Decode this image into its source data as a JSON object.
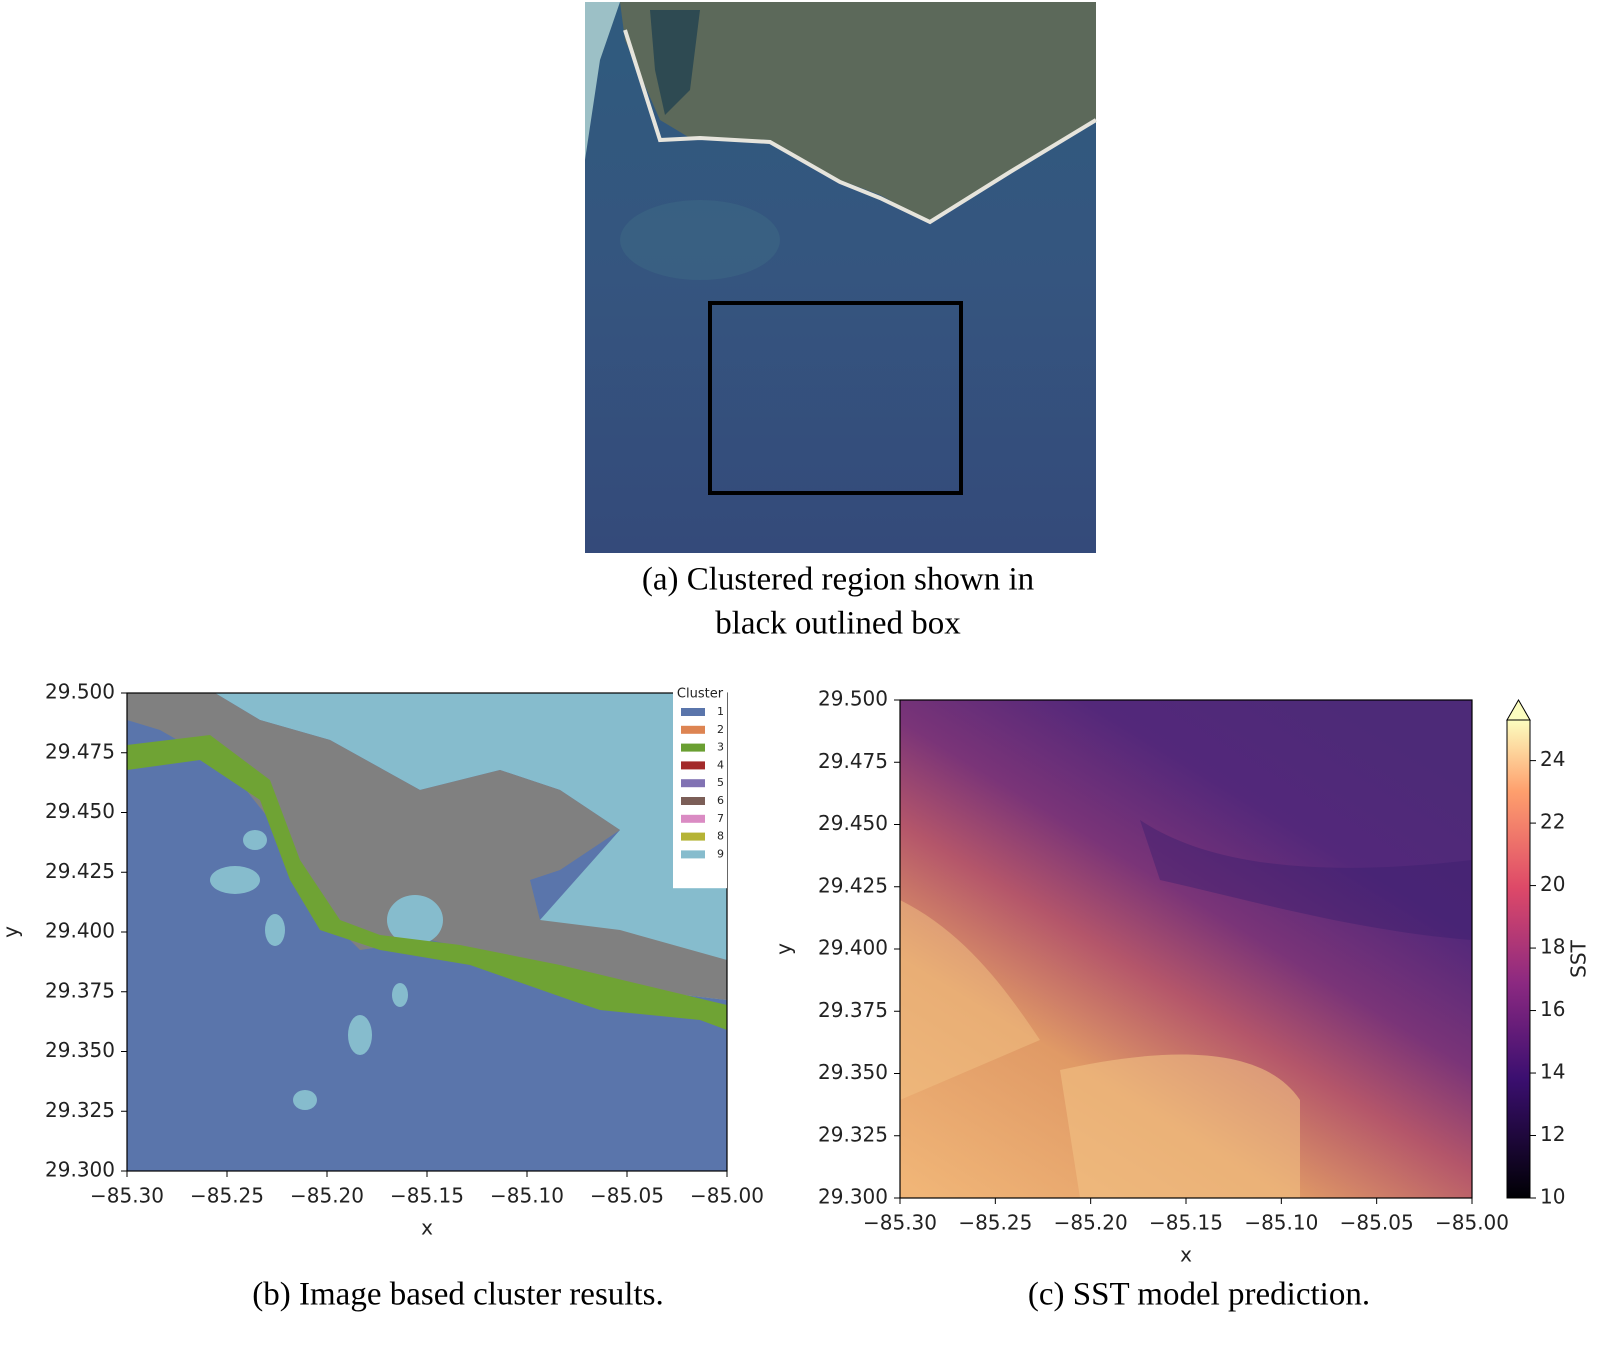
{
  "figure": {
    "panel_a": {
      "caption": [
        "(a) Clustered region shown in",
        "black outlined box"
      ]
    }
  },
  "chart_data": [
    {
      "type": "map",
      "caption": "(b) Image based cluster results.",
      "xlabel": "x",
      "ylabel": "y",
      "xlim": [
        -85.3,
        -85.0
      ],
      "ylim": [
        29.3,
        29.5
      ],
      "xticks": [
        {
          "value": -85.3,
          "label": "−85.30"
        },
        {
          "value": -85.25,
          "label": "−85.25"
        },
        {
          "value": -85.2,
          "label": "−85.20"
        },
        {
          "value": -85.15,
          "label": "−85.15"
        },
        {
          "value": -85.1,
          "label": "−85.10"
        },
        {
          "value": -85.05,
          "label": "−85.05"
        },
        {
          "value": -85.0,
          "label": "−85.00"
        }
      ],
      "yticks": [
        {
          "value": 29.3,
          "label": "29.300"
        },
        {
          "value": 29.325,
          "label": "29.325"
        },
        {
          "value": 29.35,
          "label": "29.350"
        },
        {
          "value": 29.375,
          "label": "29.375"
        },
        {
          "value": 29.4,
          "label": "29.400"
        },
        {
          "value": 29.425,
          "label": "29.425"
        },
        {
          "value": 29.45,
          "label": "29.450"
        },
        {
          "value": 29.475,
          "label": "29.475"
        },
        {
          "value": 29.5,
          "label": "29.500"
        }
      ],
      "legend": {
        "title": "Cluster",
        "position": "upper right",
        "entries": [
          {
            "name": "1",
            "color": "#5a75ab"
          },
          {
            "name": "2",
            "color": "#dd8452"
          },
          {
            "name": "3",
            "color": "#6a9f32"
          },
          {
            "name": "4",
            "color": "#a32a2a"
          },
          {
            "name": "5",
            "color": "#8172b3"
          },
          {
            "name": "6",
            "color": "#7b5e57"
          },
          {
            "name": "7",
            "color": "#da8bc3"
          },
          {
            "name": "8",
            "color": "#b5b335"
          },
          {
            "name": "9",
            "color": "#86bccd"
          }
        ]
      }
    },
    {
      "type": "map",
      "caption": "(c) SST model prediction.",
      "xlabel": "x",
      "ylabel": "y",
      "xlim": [
        -85.3,
        -85.0
      ],
      "ylim": [
        29.3,
        29.5
      ],
      "xticks": [
        {
          "value": -85.3,
          "label": "−85.30"
        },
        {
          "value": -85.25,
          "label": "−85.25"
        },
        {
          "value": -85.2,
          "label": "−85.20"
        },
        {
          "value": -85.15,
          "label": "−85.15"
        },
        {
          "value": -85.1,
          "label": "−85.10"
        },
        {
          "value": -85.05,
          "label": "−85.05"
        },
        {
          "value": -85.0,
          "label": "−85.00"
        }
      ],
      "yticks": [
        {
          "value": 29.3,
          "label": "29.300"
        },
        {
          "value": 29.325,
          "label": "29.325"
        },
        {
          "value": 29.35,
          "label": "29.350"
        },
        {
          "value": 29.375,
          "label": "29.375"
        },
        {
          "value": 29.4,
          "label": "29.400"
        },
        {
          "value": 29.425,
          "label": "29.425"
        },
        {
          "value": 29.45,
          "label": "29.450"
        },
        {
          "value": 29.475,
          "label": "29.475"
        },
        {
          "value": 29.5,
          "label": "29.500"
        }
      ],
      "colorbar": {
        "label": "SST",
        "lim": [
          10,
          25.3
        ],
        "ticks": [
          10,
          12,
          14,
          16,
          18,
          20,
          22,
          24
        ],
        "extend": "max"
      }
    }
  ]
}
